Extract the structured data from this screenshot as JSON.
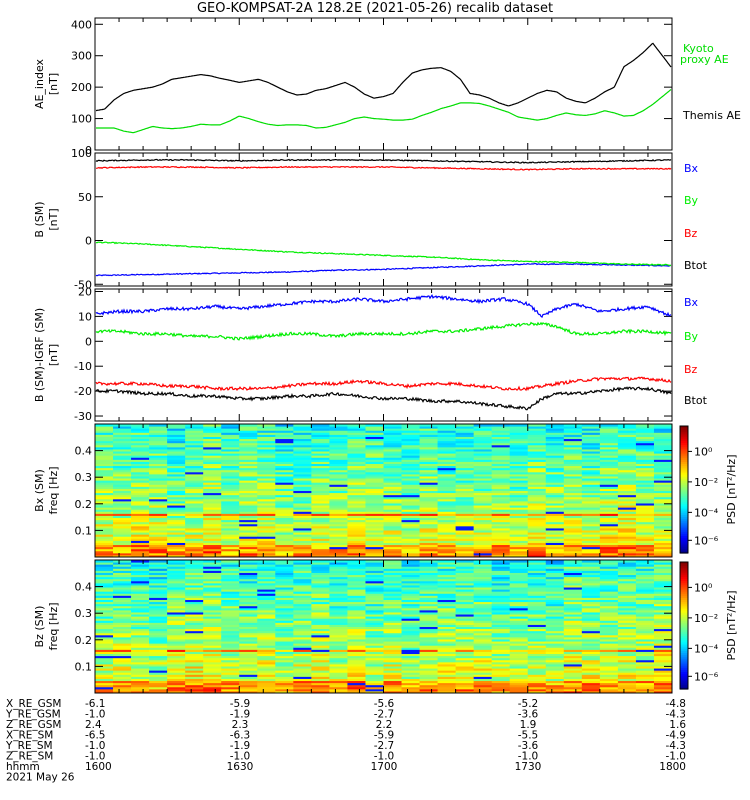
{
  "title": "GEO-KOMPSAT-2A 128.2E (2021-05-26) recalib dataset",
  "colors": {
    "black": "#000000",
    "red": "#ff0000",
    "green": "#00ee00",
    "blue": "#0000ff",
    "kyoto": "#00dd00"
  },
  "chart_data": [
    {
      "type": "line",
      "panel": "ae",
      "ylabel": [
        "AE_index",
        "[nT]"
      ],
      "ylim": [
        0,
        420
      ],
      "yticks": [
        0,
        100,
        200,
        300,
        400
      ],
      "series": [
        {
          "name": "Themis AE",
          "color": "black",
          "x": [
            1600,
            1602,
            1604,
            1606,
            1608,
            1610,
            1612,
            1614,
            1616,
            1618,
            1620,
            1622,
            1624,
            1626,
            1628,
            1630,
            1632,
            1634,
            1636,
            1638,
            1640,
            1642,
            1644,
            1646,
            1648,
            1650,
            1652,
            1654,
            1656,
            1658,
            1700,
            1702,
            1704,
            1706,
            1708,
            1710,
            1712,
            1714,
            1716,
            1718,
            1720,
            1722,
            1724,
            1726,
            1728,
            1730,
            1732,
            1734,
            1736,
            1738,
            1740,
            1742,
            1744,
            1746,
            1748,
            1750,
            1752,
            1754,
            1756,
            1758,
            1800
          ],
          "values": [
            125,
            130,
            160,
            180,
            190,
            195,
            200,
            210,
            225,
            230,
            235,
            240,
            236,
            228,
            222,
            215,
            220,
            225,
            215,
            200,
            185,
            175,
            178,
            190,
            195,
            205,
            215,
            200,
            178,
            165,
            170,
            180,
            215,
            245,
            255,
            260,
            262,
            250,
            225,
            180,
            175,
            165,
            150,
            140,
            150,
            165,
            180,
            190,
            185,
            165,
            155,
            150,
            165,
            185,
            200,
            265,
            285,
            310,
            340,
            300,
            260
          ]
        },
        {
          "name": "Kyoto proxy AE",
          "color": "kyoto",
          "x": [
            1600,
            1604,
            1606,
            1608,
            1610,
            1612,
            1614,
            1616,
            1618,
            1620,
            1622,
            1624,
            1626,
            1628,
            1630,
            1632,
            1634,
            1636,
            1638,
            1640,
            1642,
            1644,
            1646,
            1648,
            1650,
            1652,
            1654,
            1656,
            1658,
            1700,
            1702,
            1704,
            1706,
            1708,
            1710,
            1712,
            1714,
            1716,
            1718,
            1720,
            1722,
            1724,
            1726,
            1728,
            1730,
            1732,
            1734,
            1736,
            1738,
            1740,
            1742,
            1744,
            1746,
            1748,
            1750,
            1752,
            1754,
            1756,
            1758,
            1800
          ],
          "values": [
            70,
            70,
            60,
            55,
            65,
            75,
            70,
            68,
            70,
            75,
            82,
            80,
            80,
            92,
            108,
            100,
            90,
            82,
            78,
            80,
            80,
            78,
            70,
            72,
            80,
            88,
            100,
            105,
            100,
            98,
            95,
            95,
            98,
            110,
            120,
            132,
            140,
            150,
            150,
            148,
            140,
            130,
            120,
            105,
            100,
            95,
            100,
            110,
            118,
            112,
            110,
            115,
            125,
            118,
            108,
            110,
            125,
            145,
            170,
            195
          ]
        }
      ]
    },
    {
      "type": "line",
      "panel": "bsm",
      "ylabel": [
        "B (SM)",
        "[nT]"
      ],
      "ylim": [
        -52,
        100
      ],
      "yticks": [
        -50,
        0,
        50,
        100
      ],
      "series": [
        {
          "name": "Bx",
          "color": "blue",
          "x": [
            1600,
            1610,
            1620,
            1630,
            1640,
            1650,
            1700,
            1710,
            1720,
            1730,
            1740,
            1750,
            1800
          ],
          "values": [
            -40,
            -39,
            -38,
            -37,
            -36,
            -34,
            -33,
            -31,
            -29,
            -27,
            -27,
            -28,
            -29
          ]
        },
        {
          "name": "By",
          "color": "green",
          "x": [
            1600,
            1610,
            1620,
            1630,
            1640,
            1650,
            1700,
            1710,
            1720,
            1730,
            1740,
            1750,
            1800
          ],
          "values": [
            -2,
            -4,
            -7,
            -10,
            -13,
            -15,
            -17,
            -19,
            -22,
            -24,
            -25,
            -27,
            -28
          ]
        },
        {
          "name": "Bz",
          "color": "red",
          "x": [
            1600,
            1610,
            1620,
            1630,
            1640,
            1650,
            1700,
            1710,
            1720,
            1730,
            1740,
            1750,
            1800
          ],
          "values": [
            83,
            84,
            84,
            83,
            84,
            84,
            84,
            83,
            82,
            81,
            82,
            82,
            82
          ]
        },
        {
          "name": "Btot",
          "color": "black",
          "x": [
            1600,
            1610,
            1620,
            1630,
            1640,
            1650,
            1700,
            1710,
            1720,
            1730,
            1740,
            1750,
            1800
          ],
          "values": [
            91,
            92,
            92,
            91,
            92,
            92,
            92,
            91,
            90,
            89,
            90,
            91,
            92
          ]
        }
      ]
    },
    {
      "type": "line",
      "panel": "bigrf",
      "ylabel": [
        "B (SM)-IGRF (SM)",
        "[nT]"
      ],
      "ylim": [
        -32,
        21
      ],
      "yticks": [
        -30,
        -20,
        -10,
        0,
        10,
        20
      ],
      "series": [
        {
          "name": "Bx",
          "color": "blue",
          "x": [
            1600,
            1605,
            1610,
            1615,
            1620,
            1625,
            1630,
            1635,
            1640,
            1645,
            1650,
            1655,
            1700,
            1705,
            1710,
            1715,
            1720,
            1725,
            1730,
            1733,
            1736,
            1740,
            1745,
            1750,
            1755,
            1800
          ],
          "values": [
            11,
            12,
            12,
            13,
            13,
            14,
            13,
            14,
            15,
            16,
            16,
            17,
            16,
            17,
            18,
            17,
            16,
            17,
            15,
            10,
            13,
            15,
            12,
            13,
            14,
            10
          ]
        },
        {
          "name": "By",
          "color": "green",
          "x": [
            1600,
            1605,
            1610,
            1615,
            1620,
            1625,
            1630,
            1635,
            1640,
            1645,
            1650,
            1655,
            1700,
            1705,
            1710,
            1715,
            1720,
            1725,
            1730,
            1733,
            1736,
            1740,
            1745,
            1750,
            1755,
            1800
          ],
          "values": [
            4,
            4,
            3,
            3,
            2,
            2,
            1,
            2,
            3,
            3,
            2,
            3,
            3,
            3,
            4,
            4,
            5,
            6,
            7,
            7,
            6,
            3,
            3,
            4,
            4,
            3
          ]
        },
        {
          "name": "Bz",
          "color": "red",
          "x": [
            1600,
            1605,
            1610,
            1615,
            1620,
            1625,
            1630,
            1635,
            1640,
            1645,
            1650,
            1655,
            1700,
            1705,
            1710,
            1715,
            1720,
            1725,
            1730,
            1733,
            1736,
            1740,
            1745,
            1750,
            1755,
            1800
          ],
          "values": [
            -17,
            -17,
            -17,
            -18,
            -18,
            -19,
            -19,
            -19,
            -18,
            -17,
            -17,
            -16,
            -17,
            -18,
            -17,
            -17,
            -18,
            -19,
            -19,
            -18,
            -17,
            -16,
            -15,
            -15,
            -15,
            -16
          ]
        },
        {
          "name": "Btot",
          "color": "black",
          "x": [
            1600,
            1605,
            1610,
            1615,
            1620,
            1625,
            1630,
            1635,
            1640,
            1645,
            1650,
            1655,
            1700,
            1705,
            1710,
            1715,
            1720,
            1725,
            1730,
            1733,
            1736,
            1740,
            1745,
            1750,
            1755,
            1800
          ],
          "values": [
            -20,
            -20,
            -21,
            -21,
            -22,
            -22,
            -23,
            -23,
            -22,
            -22,
            -21,
            -22,
            -23,
            -23,
            -24,
            -24,
            -25,
            -26,
            -27,
            -23,
            -21,
            -21,
            -20,
            -19,
            -19,
            -21
          ]
        }
      ]
    },
    {
      "type": "heatmap",
      "panel": "specx",
      "ylabel": [
        "Bx (SM)",
        "freq [Hz]"
      ],
      "ylim": [
        0,
        0.5
      ],
      "yticks": [
        0.1,
        0.2,
        0.3,
        0.4
      ],
      "colorbar": {
        "label": "PSD [nT²/Hz]",
        "ticks": [
          "10⁰",
          "10⁻²",
          "10⁻⁴",
          "10⁻⁶"
        ]
      }
    },
    {
      "type": "heatmap",
      "panel": "specz",
      "ylabel": [
        "Bz (SM)",
        "freq [Hz]"
      ],
      "ylim": [
        0,
        0.5
      ],
      "yticks": [
        0.1,
        0.2,
        0.3,
        0.4
      ],
      "colorbar": {
        "label": "PSD [nT²/Hz]",
        "ticks": [
          "10⁰",
          "10⁻²",
          "10⁻⁴",
          "10⁻⁶"
        ]
      }
    }
  ],
  "right_labels": {
    "ae": [
      "Kyoto",
      "proxy AE",
      "Themis AE"
    ],
    "bsm": [
      "Bx",
      "By",
      "Bz",
      "Btot"
    ],
    "bigrf": [
      "Bx",
      "By",
      "Bz",
      "Btot"
    ]
  },
  "ephemeris": {
    "labels": [
      "X_RE_GSM",
      "Y_RE_GSM",
      "Z_RE_GSM",
      "X_RE_SM",
      "Y_RE_SM",
      "Z_RE_SM",
      "hhmm",
      "2021 May 26"
    ],
    "columns": [
      [
        "-6.1",
        "-1.0",
        "2.4",
        "-6.5",
        "-1.0",
        "-1.0",
        "1600"
      ],
      [
        "-5.9",
        "-1.9",
        "2.3",
        "-6.3",
        "-1.9",
        "-1.0",
        "1630"
      ],
      [
        "-5.6",
        "-2.7",
        "2.2",
        "-5.9",
        "-2.7",
        "-1.0",
        "1700"
      ],
      [
        "-5.2",
        "-3.6",
        "1.9",
        "-5.5",
        "-3.6",
        "-1.0",
        "1730"
      ],
      [
        "-4.8",
        "-4.3",
        "1.6",
        "-4.9",
        "-4.3",
        "-1.0",
        "1800"
      ]
    ]
  }
}
